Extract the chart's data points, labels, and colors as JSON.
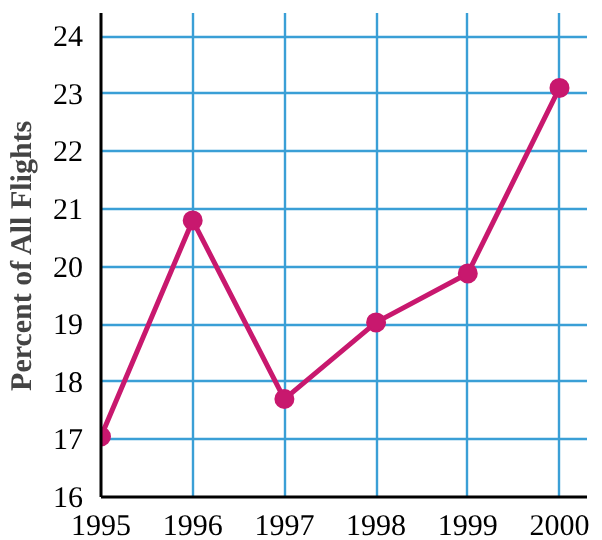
{
  "chart_data": {
    "type": "line",
    "ylabel": "Percent of All Flights",
    "x": [
      1995,
      1996,
      1997,
      1998,
      1999,
      2000
    ],
    "series": [
      {
        "color": "#c8186e",
        "values": [
          17.05,
          20.8,
          17.7,
          19.03,
          19.88,
          23.1
        ]
      }
    ],
    "xlim": [
      1995,
      2000.3
    ],
    "ylim": [
      16,
      24.4
    ],
    "xticks": [
      1995,
      1996,
      1997,
      1998,
      1999,
      2000
    ],
    "yticks": [
      16,
      17,
      18,
      19,
      20,
      21,
      22,
      23,
      24
    ],
    "grid": true,
    "marker": "circle",
    "line_style": "solid"
  }
}
